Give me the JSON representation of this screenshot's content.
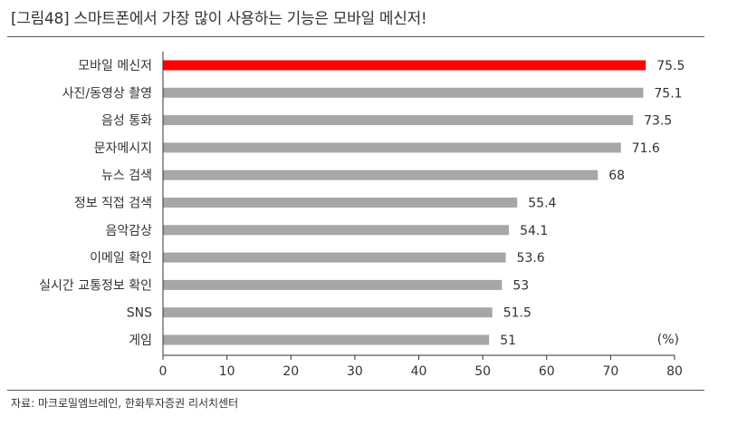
{
  "page": {
    "title": "[그림48]  스마트폰에서 가장 많이 사용하는 기능은 모바일 메신저!",
    "source": "자료: 마크로밀엠브레인, 한화투자증권 리서치센터"
  },
  "chart_data": {
    "type": "bar",
    "orientation": "horizontal",
    "categories": [
      "모바일 메신저",
      "사진/동영상 촬영",
      "음성 통화",
      "문자메시지",
      "뉴스 검색",
      "정보 직접 검색",
      "음악감상",
      "이메일 확인",
      "실시간 교통정보 확인",
      "SNS",
      "게임"
    ],
    "values": [
      75.5,
      75.1,
      73.5,
      71.6,
      68,
      55.4,
      54.1,
      53.6,
      53,
      51.5,
      51
    ],
    "value_labels": [
      "75.5",
      "75.1",
      "73.5",
      "71.6",
      "68",
      "55.4",
      "54.1",
      "53.6",
      "53",
      "51.5",
      "51"
    ],
    "unit_label": "(%)",
    "xlim": [
      0,
      80
    ],
    "xticks": [
      0,
      10,
      20,
      30,
      40,
      50,
      60,
      70,
      80
    ],
    "grid": false,
    "colors": {
      "highlight": "#ff0000",
      "bar": "#a6a6a6",
      "axis": "#333333"
    },
    "highlight_index": 0
  }
}
